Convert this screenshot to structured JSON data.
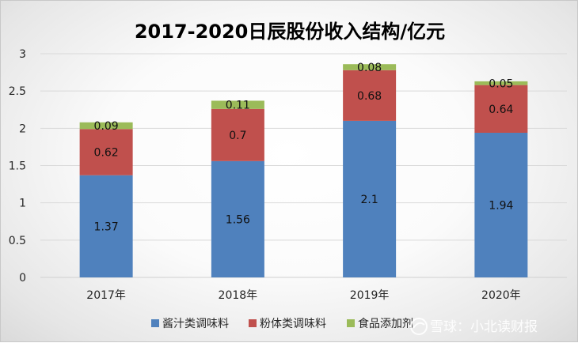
{
  "chart_data": {
    "type": "bar",
    "stacked": true,
    "title": "2017-2020日辰股份收入结构/亿元",
    "categories": [
      "2017年",
      "2018年",
      "2019年",
      "2020年"
    ],
    "series": [
      {
        "name": "酱汁类调味料",
        "values": [
          1.37,
          1.56,
          2.1,
          1.94
        ],
        "color": "#4F81BD"
      },
      {
        "name": "粉体类调味料",
        "values": [
          0.62,
          0.7,
          0.68,
          0.64
        ],
        "color": "#C0504D"
      },
      {
        "name": "食品添加剂",
        "values": [
          0.09,
          0.11,
          0.08,
          0.05
        ],
        "color": "#9BBB59"
      }
    ],
    "data_labels": [
      [
        "1.37",
        "1.56",
        "2.1",
        "1.94"
      ],
      [
        "0.62",
        "0.7",
        "0.68",
        "0.64"
      ],
      [
        "0.09",
        "0.11",
        "0.08",
        "0.05"
      ]
    ],
    "ylim": [
      0,
      3
    ],
    "yticks": [
      0,
      0.5,
      1,
      1.5,
      2,
      2.5,
      3
    ],
    "ytick_labels": [
      "0",
      "0.5",
      "1",
      "1.5",
      "2",
      "2.5",
      "3"
    ],
    "grid": true,
    "legend_position": "bottom"
  },
  "watermark": {
    "text": "雪球：小北读财报"
  }
}
